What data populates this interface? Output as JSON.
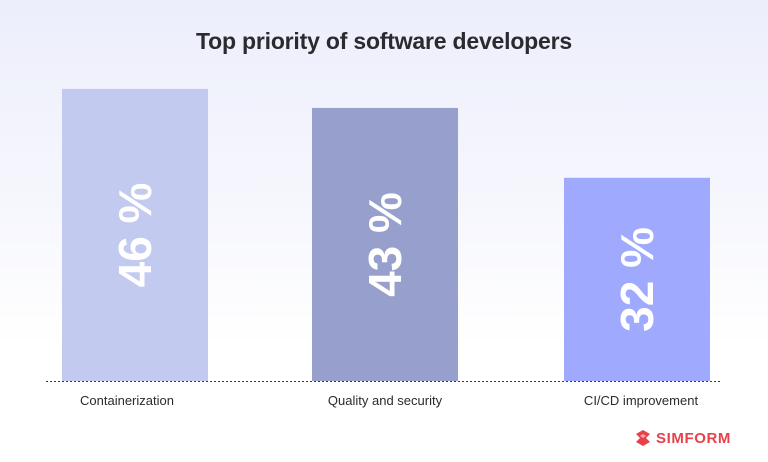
{
  "chart_data": {
    "type": "bar",
    "title": "Top priority of software developers",
    "categories": [
      "Containerization",
      "Quality and security",
      "CI/CD improvement"
    ],
    "values": [
      46,
      43,
      32
    ],
    "value_labels": [
      "46 %",
      "43 %",
      "32 %"
    ],
    "unit": "%",
    "colors": [
      "#c3caf0",
      "#97a0cc",
      "#9faafe"
    ],
    "label_color": "#ffffff",
    "ylim": [
      0,
      50
    ],
    "grid": false,
    "xlabel": "",
    "ylabel": ""
  },
  "brand": {
    "name": "SIMFORM",
    "color": "#e8414a"
  }
}
